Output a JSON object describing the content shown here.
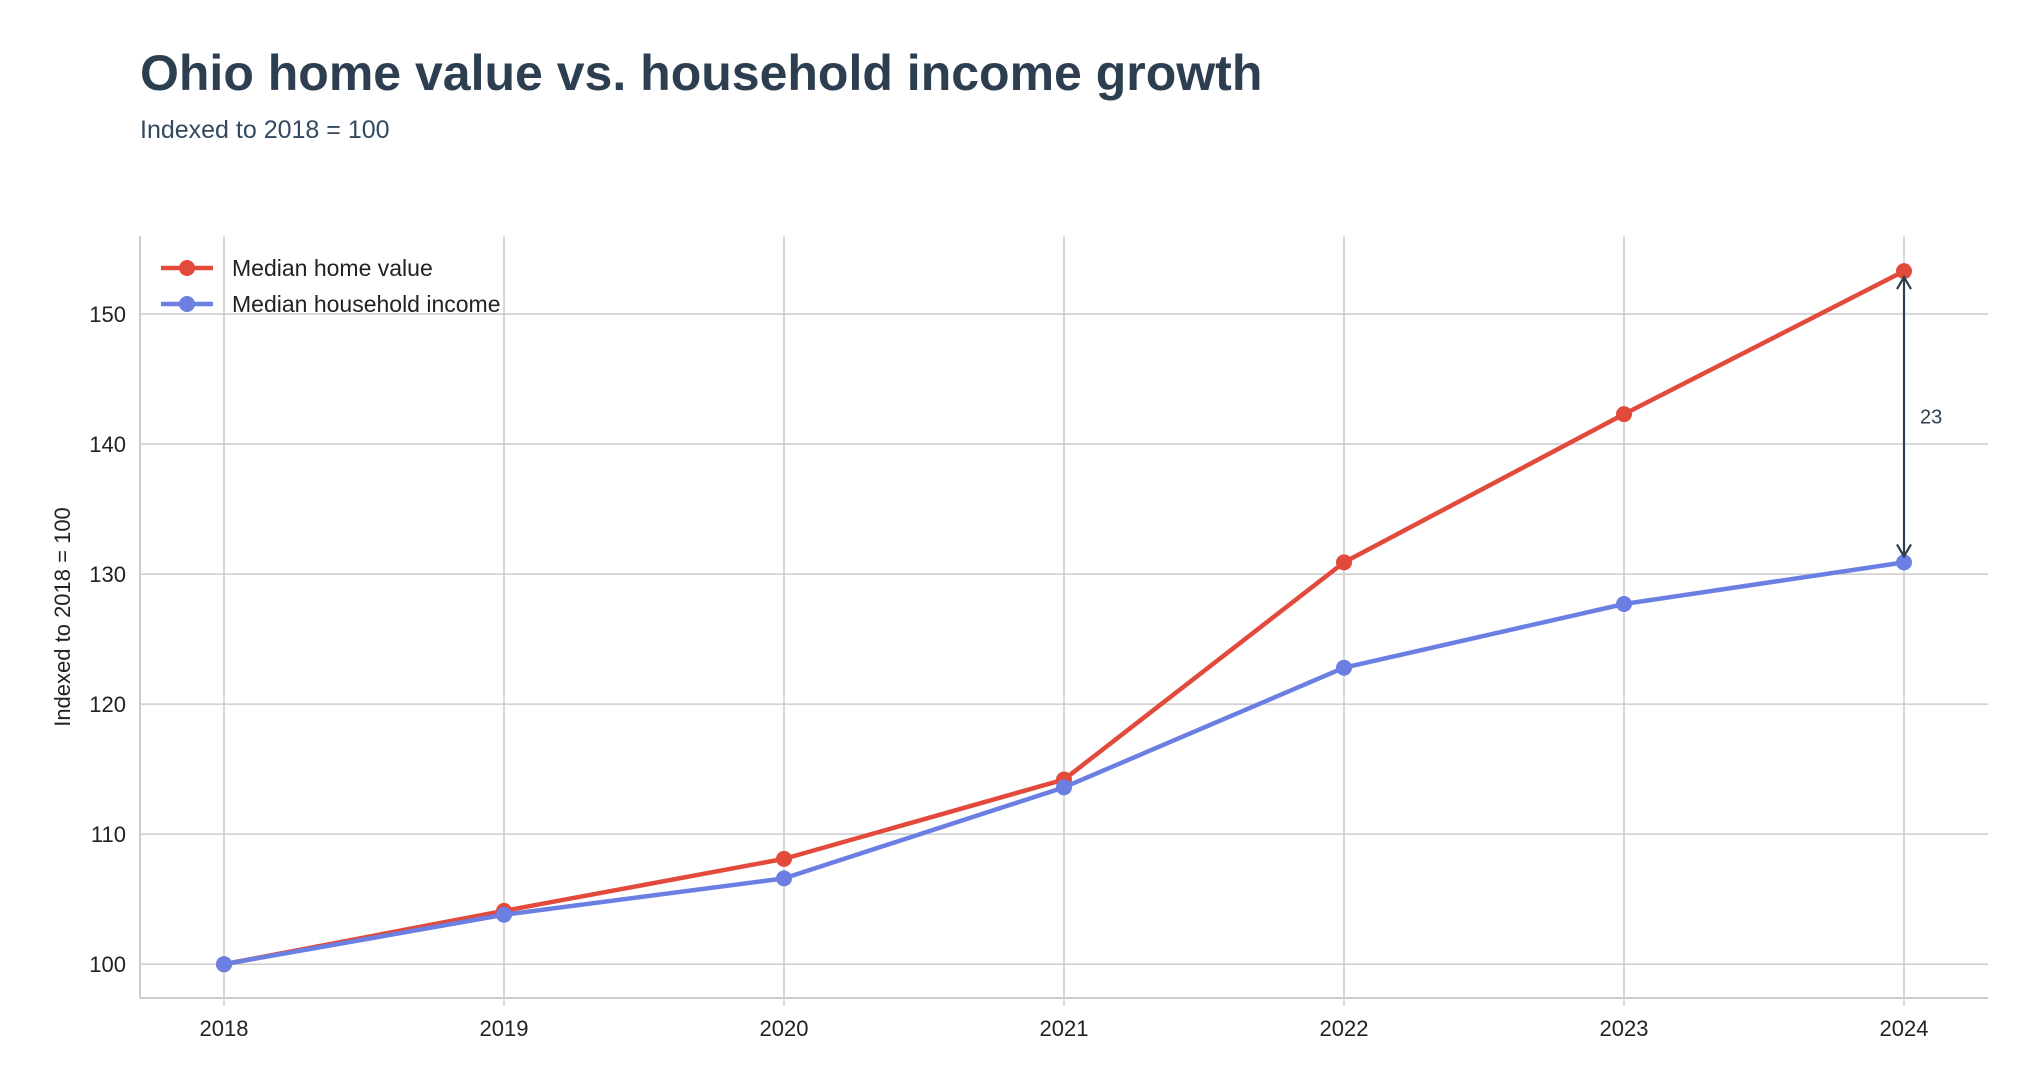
{
  "chart_data": {
    "type": "line",
    "title": "Ohio home value vs. household income growth",
    "subtitle": "Indexed to 2018 = 100",
    "xlabel": "",
    "ylabel": "Indexed to 2018 = 100",
    "x": [
      2018,
      2019,
      2020,
      2021,
      2022,
      2023,
      2024
    ],
    "xticks": [
      "2018",
      "2019",
      "2020",
      "2021",
      "2022",
      "2023",
      "2024"
    ],
    "yticks": [
      100,
      110,
      120,
      130,
      140,
      150
    ],
    "ylim": [
      97.4,
      156.0
    ],
    "xlim": [
      2017.7,
      2024.3
    ],
    "grid": true,
    "legend": "top-left",
    "series": [
      {
        "name": "Median home value",
        "color": "#e24a3b",
        "values": [
          100.0,
          104.1,
          108.1,
          114.2,
          130.9,
          142.3,
          153.3
        ]
      },
      {
        "name": "Median household income",
        "color": "#6b7fe3",
        "values": [
          100.0,
          103.8,
          106.6,
          113.6,
          122.8,
          127.7,
          130.9
        ]
      }
    ],
    "annotations": [
      {
        "label": "23",
        "x": 2024,
        "y_from": 130.9,
        "y_to": 153.3,
        "color": "#2c3e50"
      }
    ]
  }
}
